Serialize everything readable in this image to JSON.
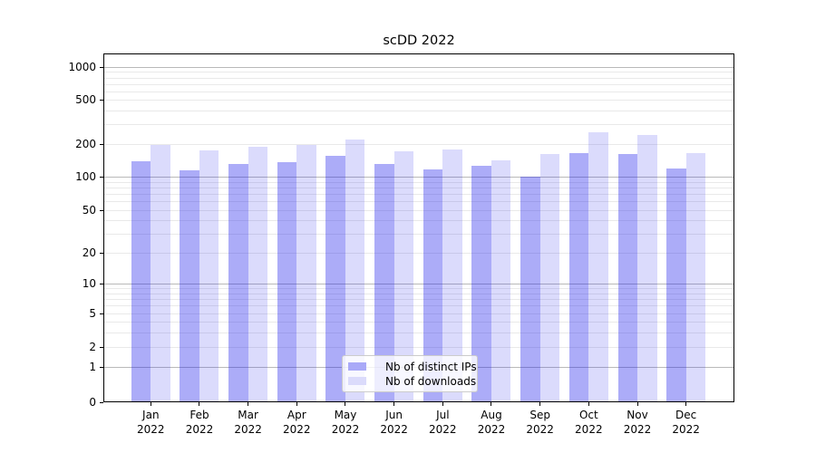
{
  "chart_data": {
    "type": "bar",
    "title": "scDD 2022",
    "months": [
      "Jan",
      "Feb",
      "Mar",
      "Apr",
      "May",
      "Jun",
      "Jul",
      "Aug",
      "Sep",
      "Oct",
      "Nov",
      "Dec"
    ],
    "year_label": "2022",
    "categories": [
      "Jan 2022",
      "Feb 2022",
      "Mar 2022",
      "Apr 2022",
      "May 2022",
      "Jun 2022",
      "Jul 2022",
      "Aug 2022",
      "Sep 2022",
      "Oct 2022",
      "Nov 2022",
      "Dec 2022"
    ],
    "series": [
      {
        "name": "Nb of distinct IPs",
        "color": "rgba(25,25,235,0.36)",
        "color_on_white": "#a9a9f8",
        "values": [
          139,
          114,
          130,
          135,
          155,
          131,
          116,
          126,
          101,
          166,
          163,
          120
        ]
      },
      {
        "name": "Nb of downloads",
        "color": "rgba(25,25,235,0.155)",
        "color_on_white": "#dbdbfb",
        "values": [
          197,
          175,
          189,
          195,
          219,
          171,
          178,
          142,
          162,
          253,
          242,
          165
        ]
      }
    ],
    "y_axis": {
      "scale": "symlog",
      "tick_values": [
        1000,
        500,
        200,
        100,
        50,
        20,
        10,
        5,
        2,
        1,
        0
      ],
      "tick_labels": [
        "1000",
        "500",
        "200",
        "100",
        "50",
        "20",
        "10",
        "5",
        "2",
        "1",
        "0"
      ],
      "minor_grid_values": [
        2,
        3,
        4,
        5,
        6,
        7,
        8,
        9,
        20,
        30,
        40,
        50,
        60,
        70,
        80,
        90,
        200,
        300,
        400,
        500,
        600,
        700,
        800,
        900
      ],
      "major_grid_values": [
        1,
        10,
        100,
        1000
      ],
      "ylim": [
        0,
        1300
      ]
    },
    "legend": {
      "position": "lower-center"
    },
    "grid": true
  }
}
